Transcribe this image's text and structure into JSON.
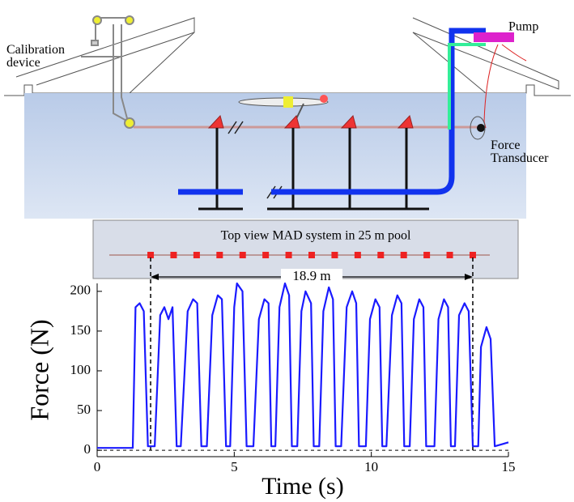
{
  "chart_data": {
    "type": "line",
    "annotations": {
      "calibration": "Calibration device",
      "pump": "Pump",
      "transducer": "Force Transducer",
      "top_view": "Top view MAD system in 25 m pool",
      "distance": "18.9 m"
    },
    "xlabel": "Time (s)",
    "ylabel": "Force (N)",
    "xlim": [
      0,
      15
    ],
    "xticks": [
      0,
      5,
      10,
      15
    ],
    "ylim": [
      -8,
      210
    ],
    "yticks": [
      0,
      50,
      100,
      150,
      200
    ],
    "vlines": [
      1.95,
      13.7
    ],
    "series": [
      {
        "name": "Force",
        "color": "#1a1aff",
        "x": [
          0,
          1.3,
          1.4,
          1.55,
          1.7,
          1.85,
          2.1,
          2.3,
          2.45,
          2.6,
          2.75,
          2.9,
          3.05,
          3.3,
          3.5,
          3.65,
          3.8,
          4.0,
          4.2,
          4.4,
          4.55,
          4.7,
          4.85,
          5.0,
          5.1,
          5.3,
          5.45,
          5.7,
          5.9,
          6.1,
          6.25,
          6.35,
          6.5,
          6.65,
          6.85,
          7.0,
          7.1,
          7.3,
          7.45,
          7.6,
          7.8,
          7.9,
          8.1,
          8.25,
          8.45,
          8.6,
          8.7,
          8.9,
          9.1,
          9.3,
          9.45,
          9.55,
          9.8,
          9.95,
          10.15,
          10.3,
          10.4,
          10.55,
          10.75,
          10.95,
          11.1,
          11.2,
          11.4,
          11.55,
          11.75,
          11.9,
          12.0,
          12.3,
          12.45,
          12.65,
          12.8,
          12.9,
          13.05,
          13.2,
          13.4,
          13.55,
          13.7,
          13.9,
          14.0,
          14.2,
          14.35,
          14.5,
          14.8,
          15
        ],
        "values": [
          3,
          3,
          180,
          185,
          175,
          5,
          5,
          170,
          180,
          165,
          180,
          5,
          5,
          175,
          190,
          185,
          5,
          5,
          170,
          195,
          190,
          5,
          5,
          180,
          210,
          200,
          5,
          5,
          165,
          190,
          185,
          5,
          5,
          180,
          210,
          195,
          5,
          5,
          175,
          200,
          185,
          5,
          5,
          175,
          205,
          190,
          5,
          5,
          180,
          200,
          185,
          5,
          5,
          165,
          190,
          180,
          5,
          5,
          170,
          195,
          185,
          5,
          5,
          165,
          190,
          180,
          5,
          5,
          165,
          190,
          180,
          5,
          5,
          170,
          185,
          175,
          5,
          5,
          130,
          155,
          140,
          5,
          8,
          10
        ]
      }
    ]
  }
}
